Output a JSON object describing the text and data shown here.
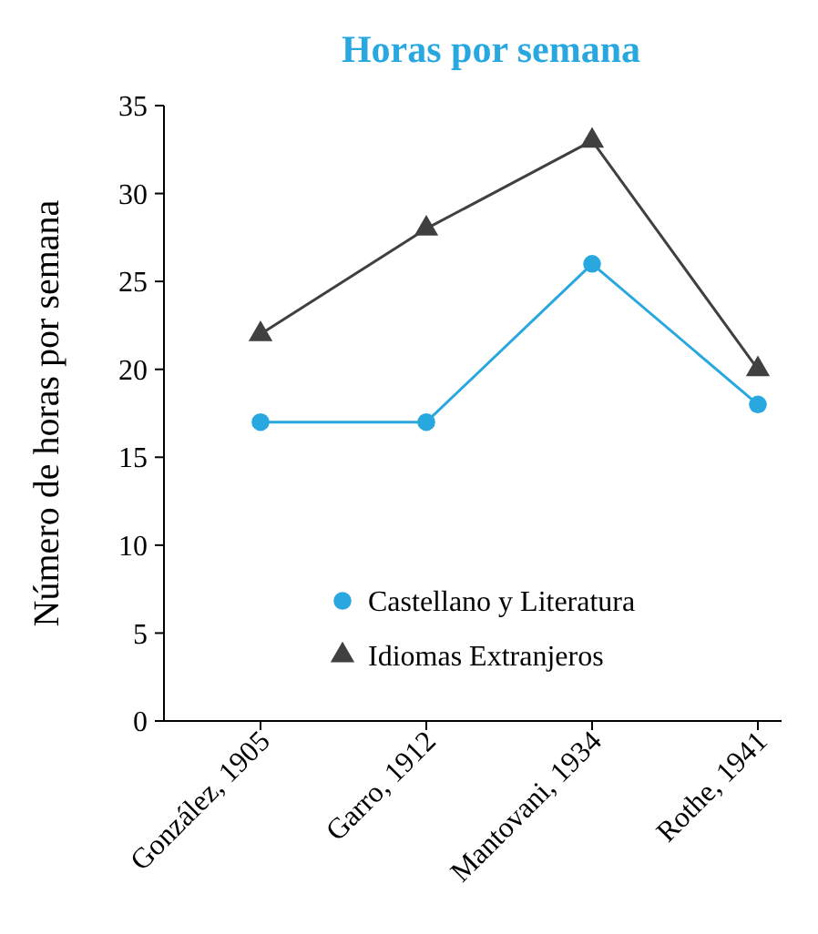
{
  "chart_data": {
    "type": "line",
    "title": "Horas por semana",
    "ylabel": "Número de horas por semana",
    "categories": [
      "González, 1905",
      "Garro, 1912",
      "Mantovani, 1934",
      "Rothe, 1941"
    ],
    "series": [
      {
        "name": "Castellano y Literatura",
        "color": "#29a8e0",
        "values": [
          17,
          17,
          26,
          18
        ],
        "marker": "circle"
      },
      {
        "name": "Idiomas Extranjeros",
        "color": "#404040",
        "values": [
          22,
          28,
          33,
          20
        ],
        "marker": "triangle"
      }
    ],
    "ylim": [
      0,
      35
    ],
    "yticks": [
      0,
      5,
      10,
      15,
      20,
      25,
      30,
      35
    ],
    "grid": false,
    "legend": "bottom"
  }
}
